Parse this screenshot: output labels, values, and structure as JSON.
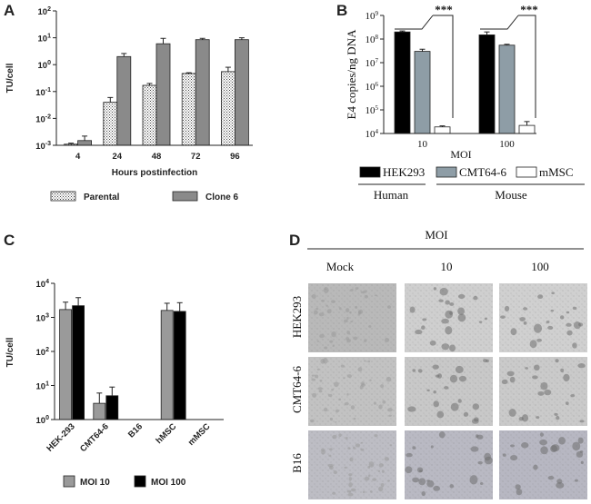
{
  "panels": {
    "A": "A",
    "B": "B",
    "C": "C",
    "D": "D"
  },
  "chart_data": [
    {
      "panel": "A",
      "type": "bar",
      "scale": "log",
      "ylabel": "TU/cell",
      "xlabel": "Hours postinfection",
      "categories": [
        "4",
        "24",
        "48",
        "72",
        "96"
      ],
      "yticks": [
        {
          "value": 0.001,
          "base": "10",
          "exp": "-3"
        },
        {
          "value": 0.01,
          "base": "10",
          "exp": "-2"
        },
        {
          "value": 0.1,
          "base": "10",
          "exp": "-1"
        },
        {
          "value": 1,
          "base": "10",
          "exp": "0"
        },
        {
          "value": 10,
          "base": "10",
          "exp": "1"
        },
        {
          "value": 100,
          "base": "10",
          "exp": "2"
        }
      ],
      "ylim": [
        0.001,
        100
      ],
      "series": [
        {
          "name": "Parental",
          "values": [
            0.0011,
            0.04,
            0.17,
            0.47,
            0.55
          ],
          "errors": [
            0.0012,
            0.06,
            0.2,
            0.5,
            0.8
          ]
        },
        {
          "name": "Clone 6",
          "values": [
            0.0015,
            2.0,
            6.0,
            8.5,
            8.5
          ],
          "errors": [
            0.0022,
            2.6,
            9.5,
            9.5,
            10.0
          ]
        }
      ],
      "colors": {
        "Parental": "#ffffff",
        "Clone 6": "#8a8a8a"
      },
      "legend": "bottom"
    },
    {
      "panel": "B",
      "type": "bar",
      "scale": "log",
      "ylabel": "E4 copies/ng DNA",
      "xlabel": "MOI",
      "categories": [
        "10",
        "100"
      ],
      "yticks": [
        {
          "value": 10000,
          "base": "10",
          "exp": "4"
        },
        {
          "value": 100000,
          "base": "10",
          "exp": "5"
        },
        {
          "value": 1000000,
          "base": "10",
          "exp": "6"
        },
        {
          "value": 10000000,
          "base": "10",
          "exp": "7"
        },
        {
          "value": 100000000,
          "base": "10",
          "exp": "8"
        },
        {
          "value": 1000000000,
          "base": "10",
          "exp": "9"
        }
      ],
      "ylim": [
        10000,
        1000000000
      ],
      "series": [
        {
          "name": "HEK293",
          "values": [
            200000000,
            150000000
          ],
          "errors": [
            220000000,
            200000000
          ]
        },
        {
          "name": "CMT64-6",
          "values": [
            30000000,
            55000000
          ],
          "errors": [
            37000000,
            60000000
          ]
        },
        {
          "name": "mMSC",
          "values": [
            19000,
            22000
          ],
          "errors": [
            21000,
            32000
          ]
        }
      ],
      "colors": {
        "HEK293": "#000000",
        "CMT64-6": "#8e9da6",
        "mMSC": "#ffffff"
      },
      "significance": "***",
      "groups": [
        {
          "label": "Human",
          "members": [
            "HEK293"
          ]
        },
        {
          "label": "Mouse",
          "members": [
            "CMT64-6",
            "mMSC"
          ]
        }
      ],
      "legend": "bottom"
    },
    {
      "panel": "C",
      "type": "bar",
      "scale": "log",
      "ylabel": "TU/cell",
      "categories": [
        "HEK-293",
        "CMT64-6",
        "B16",
        "hMSC",
        "mMSC"
      ],
      "yticks": [
        {
          "value": 1,
          "base": "10",
          "exp": "0"
        },
        {
          "value": 10,
          "base": "10",
          "exp": "1"
        },
        {
          "value": 100,
          "base": "10",
          "exp": "2"
        },
        {
          "value": 1000,
          "base": "10",
          "exp": "3"
        },
        {
          "value": 10000,
          "base": "10",
          "exp": "4"
        }
      ],
      "ylim": [
        1,
        10000
      ],
      "series": [
        {
          "name": "MOI 10",
          "values": [
            1700,
            3,
            null,
            1600,
            null
          ],
          "errors": [
            2800,
            6,
            null,
            2600,
            null
          ]
        },
        {
          "name": "MOI 100",
          "values": [
            2200,
            5,
            null,
            1500,
            null
          ],
          "errors": [
            3800,
            9,
            null,
            2700,
            null
          ]
        }
      ],
      "colors": {
        "MOI 10": "#9a9a9a",
        "MOI 100": "#000000"
      },
      "legend": "bottom"
    }
  ],
  "micrographs": {
    "header": "MOI",
    "columns": [
      "Mock",
      "10",
      "100"
    ],
    "rows": [
      "HEK293",
      "CMT64-6",
      "B16"
    ]
  }
}
